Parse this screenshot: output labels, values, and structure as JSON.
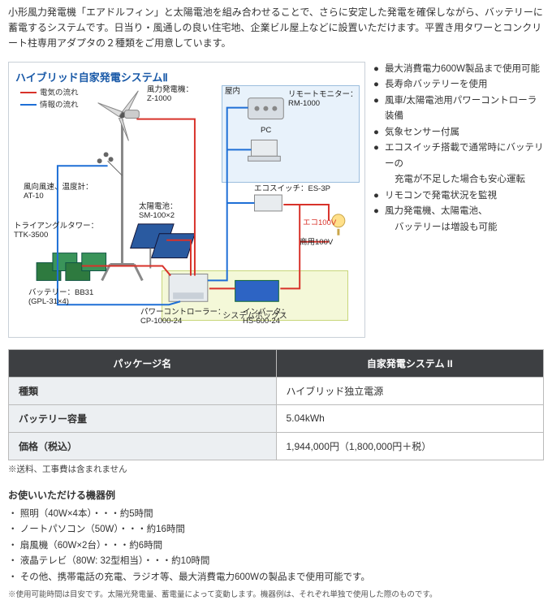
{
  "intro": "小形風力発電機「エアドルフィン」と太陽電池を組み合わせることで、さらに安定した発電を確保しながら、バッテリーに蓄電するシステムです。日当り・風通しの良い住宅地、企業ビル屋上などに設置いただけます。平置き用タワーとコンクリート柱専用アダプタの２種類をご用意しています。",
  "diagram": {
    "title": "ハイブリッド自家発電システムⅡ",
    "legend": {
      "elec": "電気の流れ",
      "info": "情報の流れ"
    },
    "labels": {
      "wind_gen": "風力発電機：\nZ-1000",
      "anemo": "風向風速、温度計：\nAT-10",
      "tower": "トライアングルタワー：\nTTK-3500",
      "solar": "太陽電池：\nSM-100×2",
      "battery": "バッテリー：BB31\n(GPL-31×4)",
      "pwrctrl": "パワーコントローラー：\nCP-1000-24",
      "inverter": "インバータ：\nHS-600-24",
      "remote": "リモートモニター：\nRM-1000",
      "pc": "PC",
      "eco": "エコスイッチ：ES-3P",
      "eco100": "エコ100V",
      "com100": "商用100V",
      "indoor": "屋内",
      "sysbox": "システムボックス"
    },
    "colors": {
      "elec": "#d8322a",
      "info": "#1e6fd6",
      "box_border": "#c9d0d8",
      "title": "#1a5aa8",
      "indoor_bg": "#e8f2fb",
      "sysbox_bg": "#f4f8d8",
      "solar_fill": "#2a5aa0",
      "battery_fill": "#2e7a3f",
      "device_gray": "#d7dde3"
    }
  },
  "features": [
    "最大消費電力600W製品まで使用可能",
    "長寿命バッテリーを使用",
    "風車/太陽電池用パワーコントローラ装備",
    "気象センサー付属",
    "エコスイッチ搭載で通常時にバッテリーの",
    "充電が不足した場合も安心運転",
    "リモコンで発電状況を監視",
    "風力発電機、太陽電池、",
    "バッテリーは増設も可能"
  ],
  "feature_is_sub": [
    false,
    false,
    false,
    false,
    false,
    true,
    false,
    false,
    true
  ],
  "spec": {
    "head_left": "パッケージ名",
    "head_right": "自家発電システム II",
    "rows": [
      {
        "k": "種類",
        "v": "ハイブリッド独立電源"
      },
      {
        "k": "バッテリー容量",
        "v": "5.04kWh"
      },
      {
        "k": "価格（税込）",
        "v": "1,944,000円（1,800,000円＋税）"
      }
    ],
    "note": "※送料、工事費は含まれません"
  },
  "usage": {
    "head": "お使いいただける機器例",
    "items": [
      "・ 照明（40W×4本）・・・約5時間",
      "・ ノートパソコン（50W）・・・約16時間",
      "・ 扇風機（60W×2台）・・・約6時間",
      "・ 液晶テレビ（80W: 32型相当）・・・約10時間",
      "・ その他、携帯電話の充電、ラジオ等、最大消費電力600Wの製品まで使用可能です。"
    ],
    "note": "※使用可能時間は目安です。太陽光発電量、蓄電量によって変動します。機器例は、それぞれ単独で使用した際のものです。"
  }
}
